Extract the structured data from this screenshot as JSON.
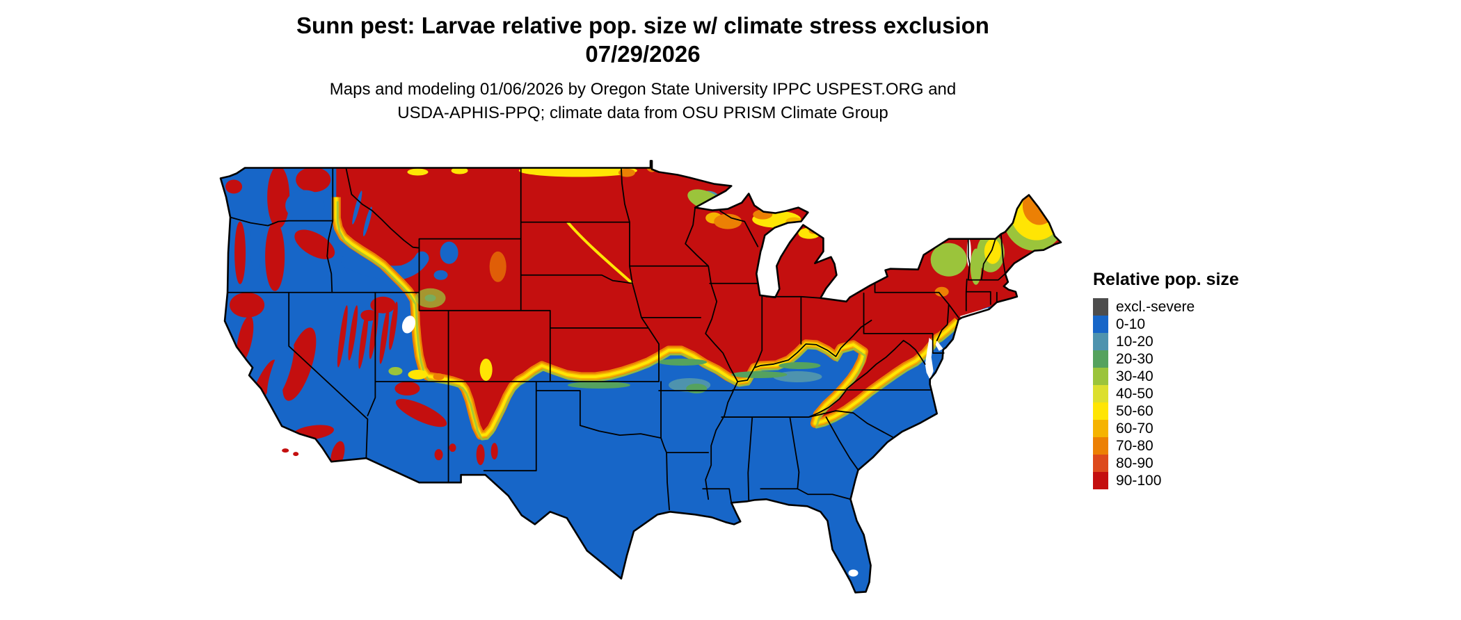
{
  "header": {
    "title_line1": "Sunn pest: Larvae relative pop. size w/ climate stress exclusion",
    "title_line2": "07/29/2026",
    "subtitle_line1": "Maps and modeling 01/06/2026 by Oregon State University IPPC USPEST.ORG and",
    "subtitle_line2": "USDA-APHIS-PPQ; climate data from OSU PRISM Climate Group"
  },
  "legend": {
    "title": "Relative pop. size",
    "items": [
      {
        "label": "excl.-severe",
        "color": "#4D4D4D"
      },
      {
        "label": "0-10",
        "color": "#1766C8"
      },
      {
        "label": "10-20",
        "color": "#4E93AE"
      },
      {
        "label": "20-30",
        "color": "#55A25E"
      },
      {
        "label": "30-40",
        "color": "#9BC43B"
      },
      {
        "label": "40-50",
        "color": "#DCDF2E"
      },
      {
        "label": "50-60",
        "color": "#FFE504"
      },
      {
        "label": "60-70",
        "color": "#F5B301"
      },
      {
        "label": "70-80",
        "color": "#EC8004"
      },
      {
        "label": "80-90",
        "color": "#DD4A1C"
      },
      {
        "label": "90-100",
        "color": "#C40F0F"
      }
    ]
  }
}
